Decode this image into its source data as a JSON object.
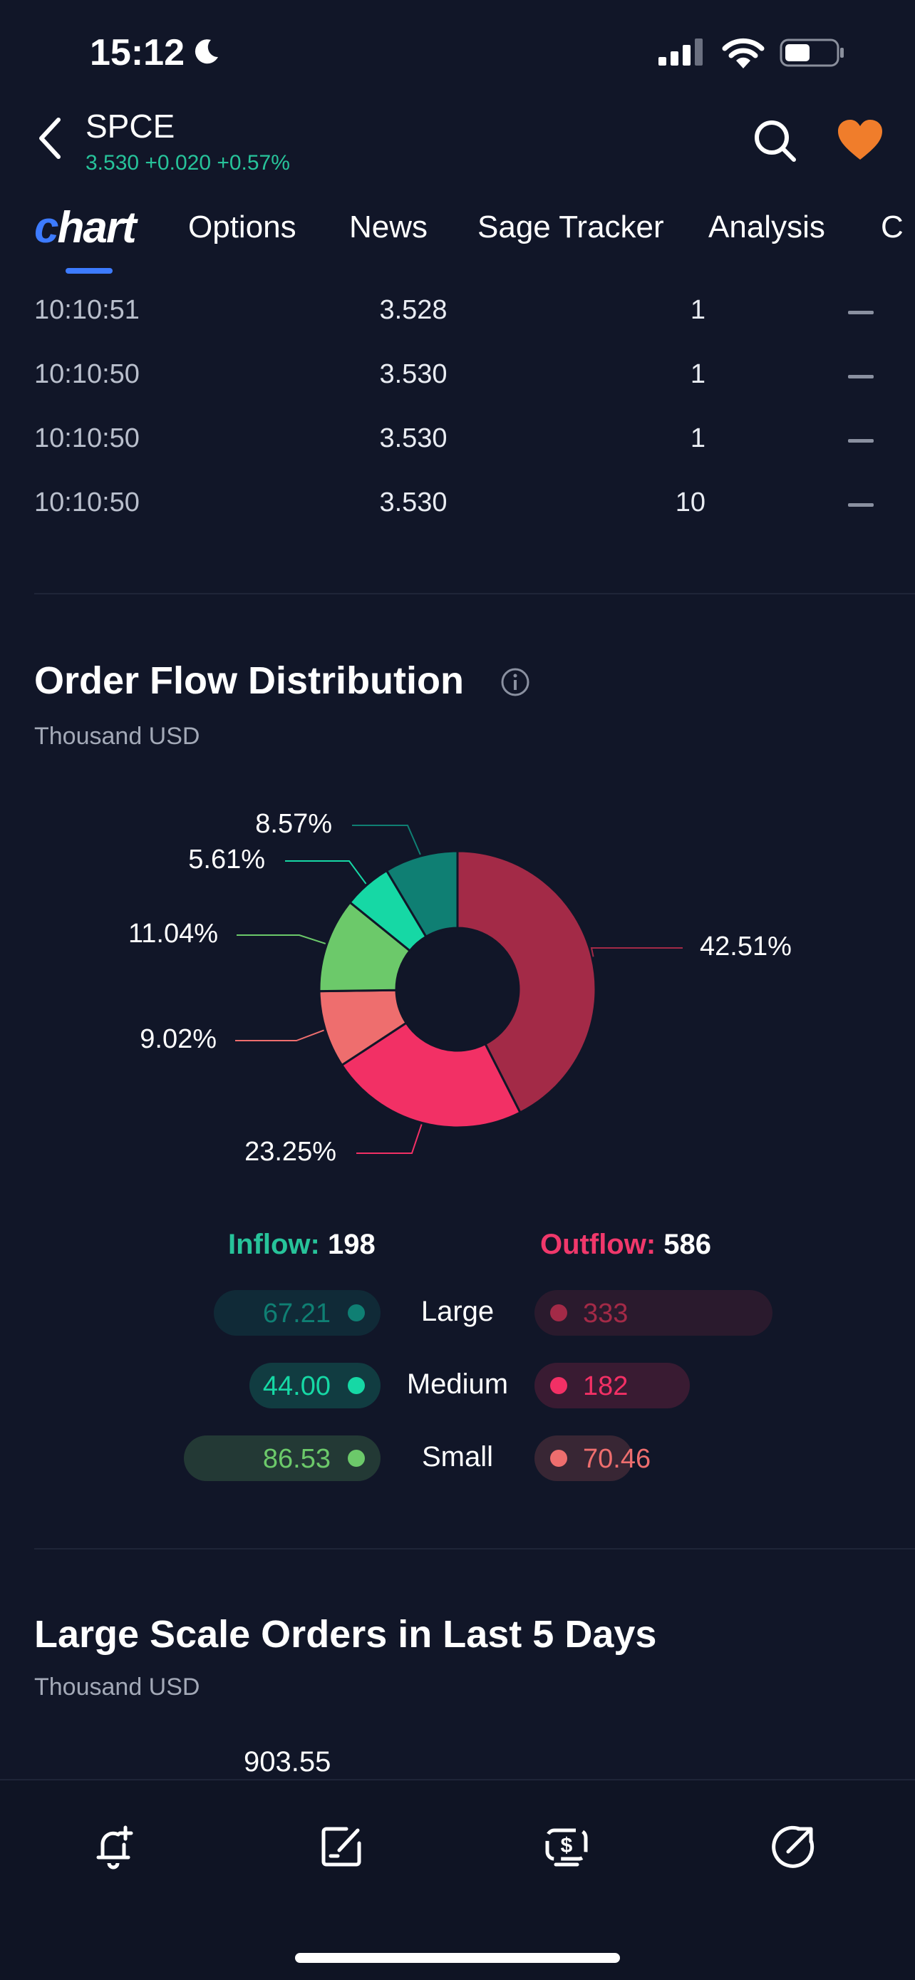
{
  "status_bar": {
    "time": "15:12"
  },
  "header": {
    "symbol": "SPCE",
    "quote": "3.530 +0.020 +0.57%"
  },
  "tabs": [
    {
      "label": "Chart"
    },
    {
      "label": "Options"
    },
    {
      "label": "News"
    },
    {
      "label": "Sage Tracker"
    },
    {
      "label": "Analysis"
    },
    {
      "label": "C"
    }
  ],
  "trades": [
    {
      "time": "10:10:51",
      "price": "3.528",
      "volume": "1"
    },
    {
      "time": "10:10:50",
      "price": "3.530",
      "volume": "1"
    },
    {
      "time": "10:10:50",
      "price": "3.530",
      "volume": "1"
    },
    {
      "time": "10:10:50",
      "price": "3.530",
      "volume": "10"
    }
  ],
  "order_flow": {
    "title": "Order Flow Distribution",
    "unit": "Thousand USD",
    "inflow_label": "Inflow:",
    "inflow_total": "198",
    "outflow_label": "Outflow:",
    "outflow_total": "586",
    "sizes": [
      {
        "label": "Large",
        "inflow": "67.21",
        "outflow": "333",
        "inflow_color": "#0f7f73",
        "outflow_color": "#a32a47"
      },
      {
        "label": "Medium",
        "inflow": "44.00",
        "outflow": "182",
        "inflow_color": "#16d8a5",
        "outflow_color": "#f23065"
      },
      {
        "label": "Small",
        "inflow": "86.53",
        "outflow": "70.46",
        "inflow_color": "#6cc96a",
        "outflow_color": "#ee6e6e"
      }
    ]
  },
  "chart_data": {
    "type": "pie",
    "title": "Order Flow Distribution",
    "slices": [
      {
        "label": "Large Outflow",
        "value": 42.51,
        "display": "42.51%",
        "color": "#a32a47"
      },
      {
        "label": "Medium Outflow",
        "value": 23.25,
        "display": "23.25%",
        "color": "#f23065"
      },
      {
        "label": "Small Outflow",
        "value": 9.02,
        "display": "9.02%",
        "color": "#ee6e6e"
      },
      {
        "label": "Small Inflow",
        "value": 11.04,
        "display": "11.04%",
        "color": "#6cc96a"
      },
      {
        "label": "Medium Inflow",
        "value": 5.61,
        "display": "5.61%",
        "color": "#16d8a5"
      },
      {
        "label": "Large Inflow",
        "value": 8.57,
        "display": "8.57%",
        "color": "#0f7f73"
      }
    ]
  },
  "large_orders": {
    "title": "Large Scale Orders in Last 5 Days",
    "unit": "Thousand USD",
    "first_value": "903.55"
  }
}
